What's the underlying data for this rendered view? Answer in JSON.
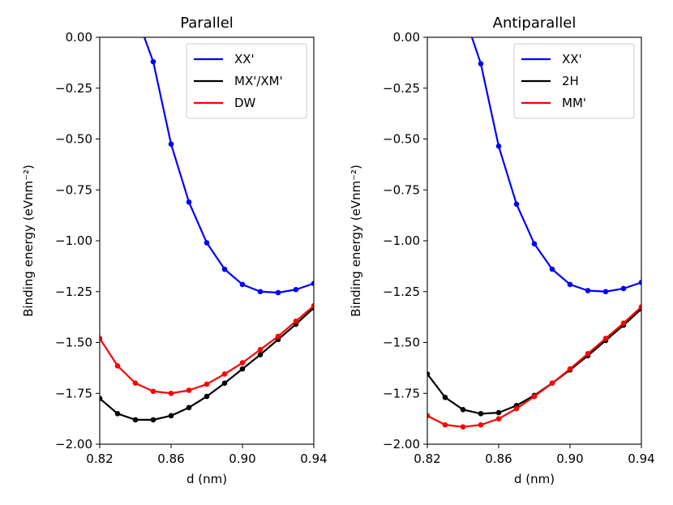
{
  "chart_data": [
    {
      "type": "line",
      "title": "Parallel",
      "xlabel": "d (nm)",
      "ylabel": "Binding energy (eVnm⁻²)",
      "xlim": [
        0.82,
        0.94
      ],
      "ylim": [
        -2.0,
        0.0
      ],
      "xticks": [
        0.82,
        0.86,
        0.9,
        0.94
      ],
      "xtick_labels": [
        "0.82",
        "0.86",
        "0.90",
        "0.94"
      ],
      "yticks": [
        0.0,
        -0.25,
        -0.5,
        -0.75,
        -1.0,
        -1.25,
        -1.5,
        -1.75,
        -2.0
      ],
      "ytick_labels": [
        "0.00",
        "−0.25",
        "−0.50",
        "−0.75",
        "−1.00",
        "−1.25",
        "−1.50",
        "−1.75",
        "−2.00"
      ],
      "grid": false,
      "legend_position": "top-right",
      "x": [
        0.82,
        0.83,
        0.84,
        0.85,
        0.86,
        0.87,
        0.88,
        0.89,
        0.9,
        0.91,
        0.92,
        0.93,
        0.94
      ],
      "series": [
        {
          "name": "XX'",
          "color": "#0000ff",
          "x": [
            0.845,
            0.85,
            0.86,
            0.87,
            0.88,
            0.89,
            0.9,
            0.91,
            0.92,
            0.93,
            0.94
          ],
          "values": [
            0.0,
            -0.12,
            -0.525,
            -0.81,
            -1.01,
            -1.14,
            -1.215,
            -1.25,
            -1.255,
            -1.24,
            -1.21
          ],
          "markers_from": 1
        },
        {
          "name": "MX'/XM'",
          "color": "#000000",
          "values": [
            -1.775,
            -1.85,
            -1.88,
            -1.88,
            -1.86,
            -1.82,
            -1.765,
            -1.7,
            -1.63,
            -1.56,
            -1.485,
            -1.41,
            -1.33
          ]
        },
        {
          "name": "DW",
          "color": "#ff0000",
          "values": [
            -1.48,
            -1.615,
            -1.7,
            -1.74,
            -1.75,
            -1.735,
            -1.705,
            -1.655,
            -1.6,
            -1.535,
            -1.47,
            -1.395,
            -1.32
          ]
        }
      ]
    },
    {
      "type": "line",
      "title": "Antiparallel",
      "xlabel": "d (nm)",
      "ylabel": "Binding energy (eVnm⁻²)",
      "xlim": [
        0.82,
        0.94
      ],
      "ylim": [
        -2.0,
        0.0
      ],
      "xticks": [
        0.82,
        0.86,
        0.9,
        0.94
      ],
      "xtick_labels": [
        "0.82",
        "0.86",
        "0.90",
        "0.94"
      ],
      "yticks": [
        0.0,
        -0.25,
        -0.5,
        -0.75,
        -1.0,
        -1.25,
        -1.5,
        -1.75,
        -2.0
      ],
      "ytick_labels": [
        "0.00",
        "−0.25",
        "−0.50",
        "−0.75",
        "−1.00",
        "−1.25",
        "−1.50",
        "−1.75",
        "−2.00"
      ],
      "grid": false,
      "legend_position": "top-right",
      "x": [
        0.82,
        0.83,
        0.84,
        0.85,
        0.86,
        0.87,
        0.88,
        0.89,
        0.9,
        0.91,
        0.92,
        0.93,
        0.94
      ],
      "series": [
        {
          "name": "XX'",
          "color": "#0000ff",
          "x": [
            0.845,
            0.85,
            0.86,
            0.87,
            0.88,
            0.89,
            0.9,
            0.91,
            0.92,
            0.93,
            0.94
          ],
          "values": [
            0.0,
            -0.13,
            -0.535,
            -0.82,
            -1.015,
            -1.14,
            -1.215,
            -1.245,
            -1.25,
            -1.235,
            -1.205
          ],
          "markers_from": 1
        },
        {
          "name": "2H",
          "color": "#000000",
          "values": [
            -1.655,
            -1.77,
            -1.83,
            -1.85,
            -1.845,
            -1.81,
            -1.76,
            -1.7,
            -1.635,
            -1.565,
            -1.49,
            -1.415,
            -1.335
          ]
        },
        {
          "name": "MM'",
          "color": "#ff0000",
          "values": [
            -1.86,
            -1.905,
            -1.915,
            -1.905,
            -1.875,
            -1.825,
            -1.765,
            -1.7,
            -1.63,
            -1.555,
            -1.48,
            -1.405,
            -1.325
          ]
        }
      ]
    }
  ]
}
